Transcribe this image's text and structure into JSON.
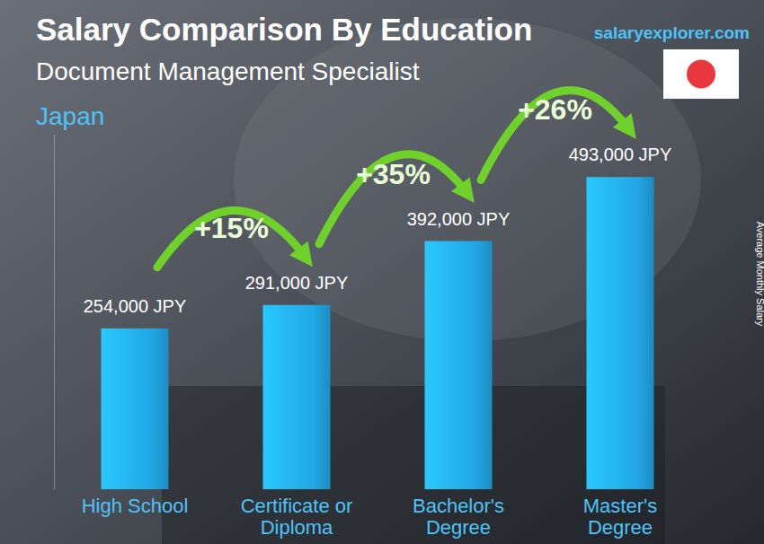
{
  "chart_data": {
    "type": "bar",
    "title": "Salary Comparison By Education",
    "subtitle": "Document Management Specialist",
    "annotations": [
      "Japan",
      "salaryexplorer.com"
    ],
    "ylabel": "Average Monthly Salary",
    "categories": [
      "High School",
      "Certificate or Diploma",
      "Bachelor's Degree",
      "Master's Degree"
    ],
    "values": [
      254000,
      291000,
      392000,
      493000
    ],
    "value_labels": [
      "254,000 JPY",
      "291,000 JPY",
      "392,000 JPY",
      "493,000 JPY"
    ],
    "changes": {
      "values": [
        15,
        35,
        26
      ],
      "labels": [
        "+15%",
        "+35%",
        "+26%"
      ]
    },
    "color": "#22a7e6",
    "ylim": [
      0,
      560000
    ],
    "yticks": [],
    "grid": false,
    "data_labels": true,
    "tick_labels": "x"
  }
}
